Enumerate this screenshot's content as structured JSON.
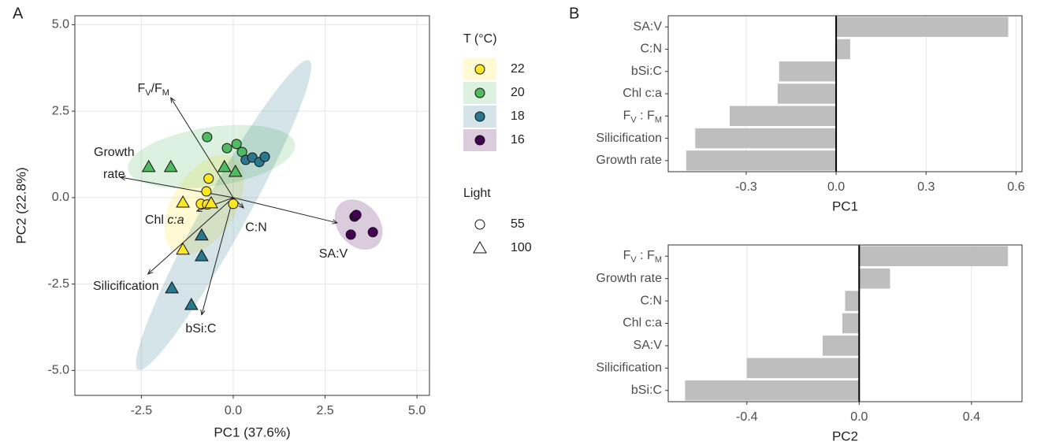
{
  "panel_labels": [
    "A",
    "B"
  ],
  "chart_data": [
    {
      "type": "scatter",
      "xlabel": "PC1 (37.6%)",
      "ylabel": "PC2 (22.8%)",
      "xlim": [
        -4.31,
        5.34
      ],
      "ylim": [
        -5.72,
        5.26
      ],
      "xticks": [
        -2.5,
        {
          "value": 0,
          "label": "0.0"
        },
        2.5,
        {
          "value": 5,
          "label": "5.0"
        }
      ],
      "yticks": [
        {
          "value": -5,
          "label": "-5.0"
        },
        -2.5,
        {
          "value": 0,
          "label": "0.0"
        },
        2.5,
        {
          "value": 5,
          "label": "5.0"
        }
      ],
      "grid": true,
      "ellipses": true,
      "color_legend_title": "T (°C)",
      "shape_legend": {
        "title": "Light",
        "levels": [
          55,
          100
        ]
      },
      "series": [
        {
          "name": "22",
          "color": "#fde725",
          "x": [
            -0.67,
            -0.73,
            -0.88,
            -0.71,
            0.0,
            -1.37,
            -0.6,
            -1.37
          ],
          "y": [
            0.55,
            0.18,
            -0.18,
            -0.2,
            -0.18,
            -0.14,
            -0.16,
            -1.5
          ],
          "light": [
            55,
            55,
            55,
            55,
            55,
            100,
            100,
            100
          ]
        },
        {
          "name": "20",
          "color": "#4fba61",
          "x": [
            -0.71,
            -0.17,
            0.09,
            0.24,
            -2.3,
            -1.7,
            -0.24,
            0.06
          ],
          "y": [
            1.75,
            1.43,
            1.55,
            1.32,
            0.89,
            0.89,
            0.89,
            0.75
          ],
          "light": [
            55,
            55,
            55,
            55,
            100,
            100,
            100,
            100
          ]
        },
        {
          "name": "18",
          "color": "#2a788e",
          "x": [
            0.34,
            0.52,
            0.71,
            0.86,
            -0.86,
            -0.86,
            -1.67,
            -1.14
          ],
          "y": [
            1.09,
            1.16,
            1.03,
            1.18,
            -1.09,
            -1.69,
            -2.62,
            -3.1
          ],
          "light": [
            55,
            55,
            55,
            55,
            100,
            100,
            100,
            100
          ]
        },
        {
          "name": "16",
          "color": "#440154",
          "x": [
            3.3,
            3.35,
            3.2,
            3.8
          ],
          "y": [
            -0.55,
            -0.5,
            -1.07,
            -1.0
          ],
          "light": [
            55,
            55,
            55,
            55
          ]
        }
      ],
      "loadings": [
        {
          "label": [
            [
              {
                "text": "F"
              },
              {
                "text": "V",
                "sub": true
              },
              {
                "text": "/F"
              },
              {
                "text": "M",
                "sub": true
              }
            ]
          ],
          "x": -1.7,
          "y": 2.89
        },
        {
          "label": [
            "Growth",
            "rate"
          ],
          "x": -3.07,
          "y": 0.59
        },
        {
          "label": [
            [
              {
                "text": "Chl "
              },
              {
                "text": "c:a",
                "italic": true
              }
            ]
          ],
          "x": -0.99,
          "y": -0.39
        },
        {
          "label": [
            "Silicification"
          ],
          "x": -2.32,
          "y": -2.21
        },
        {
          "label": [
            "bSi:C"
          ],
          "x": -0.86,
          "y": -3.39
        },
        {
          "label": [
            "C:N"
          ],
          "x": 0.28,
          "y": -0.3
        },
        {
          "label": [
            "SA:V"
          ],
          "x": 2.83,
          "y": -0.73
        }
      ]
    },
    {
      "type": "barh",
      "xlabel": "PC1",
      "categories": [
        "SA:V",
        "C:N",
        "bSi:C",
        "Chl c:a",
        [
          {
            "text": "F"
          },
          {
            "text": "V",
            "sub": true
          },
          {
            "text": " : F"
          },
          {
            "text": "M",
            "sub": true
          }
        ],
        "Silicification",
        "Growth rate"
      ],
      "values": [
        0.574,
        0.047,
        -0.19,
        -0.195,
        -0.355,
        -0.47,
        -0.5
      ],
      "color": "#bebebe",
      "xlim": [
        -0.56,
        0.62
      ],
      "xticks": [
        -0.3,
        {
          "value": 0,
          "label": "0.0"
        },
        0.3,
        0.6
      ],
      "grid": true,
      "zero_line": true
    },
    {
      "type": "barh",
      "xlabel": "PC2",
      "categories": [
        [
          {
            "text": "F"
          },
          {
            "text": "V",
            "sub": true
          },
          {
            "text": " : F"
          },
          {
            "text": "M",
            "sub": true
          }
        ],
        "Growth rate",
        "C:N",
        "Chl c:a",
        "SA:V",
        "Silicification",
        "bSi:C"
      ],
      "values": [
        0.53,
        0.11,
        -0.05,
        -0.06,
        -0.13,
        -0.4,
        -0.62
      ],
      "color": "#bebebe",
      "xlim": [
        -0.68,
        0.58
      ],
      "xticks": [
        -0.4,
        {
          "value": 0,
          "label": "0.0"
        },
        0.4
      ],
      "grid": true,
      "zero_line": true
    }
  ]
}
